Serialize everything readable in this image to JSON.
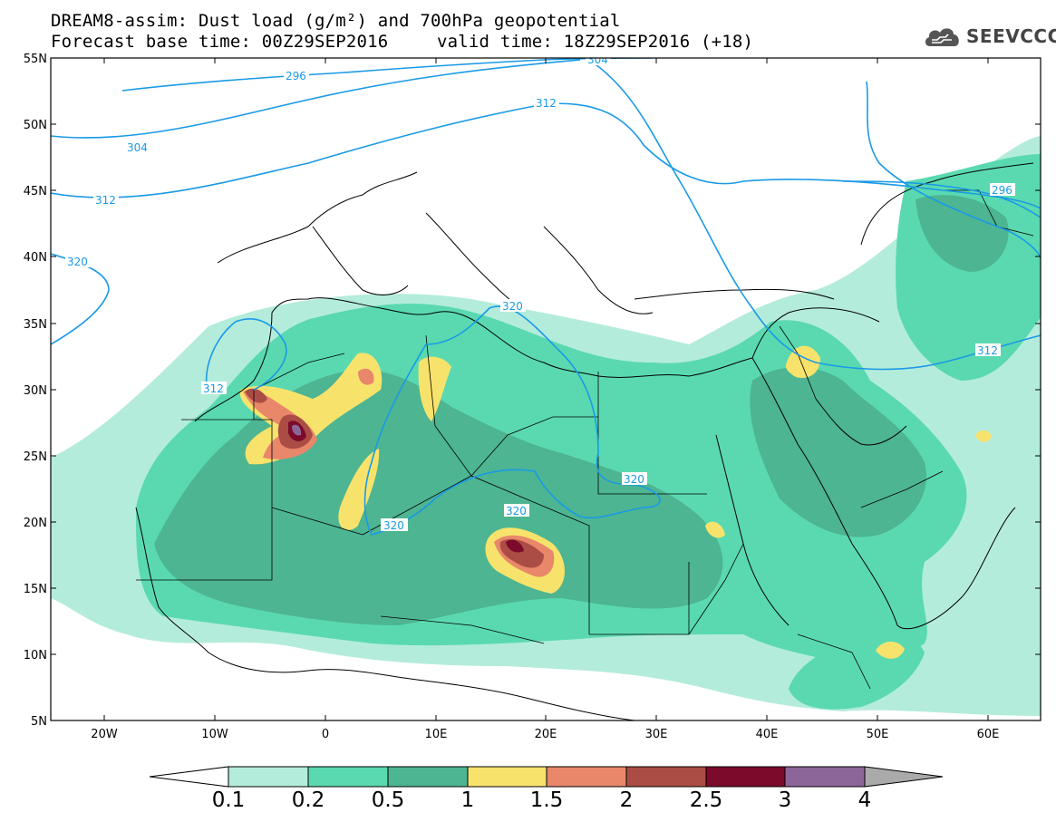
{
  "header": {
    "title_line1": "DREAM8-assim: Dust load (g/m²) and 700hPa geopotential",
    "base_time": "Forecast base time: 00Z29SEP2016",
    "valid_time": "valid time: 18Z29SEP2016 (+18)",
    "logo_text": "SEEVCCC"
  },
  "map": {
    "lat_labels": [
      "55N",
      "50N",
      "45N",
      "40N",
      "35N",
      "30N",
      "25N",
      "20N",
      "15N",
      "10N",
      "5N"
    ],
    "lon_labels": [
      "20W",
      "10W",
      "0",
      "10E",
      "20E",
      "30E",
      "40E",
      "50E",
      "60E"
    ],
    "contour_labels": [
      "296",
      "304",
      "312",
      "320",
      "312",
      "320",
      "320",
      "320",
      "312",
      "296",
      "312",
      "320",
      "304"
    ],
    "colors": {
      "c1": "#b4ecdc",
      "c2": "#5ad9b0",
      "c3": "#4db591",
      "c4": "#f7e36c",
      "c5": "#e9876a",
      "c6": "#ab4d45",
      "c7": "#7c0a2b",
      "c8": "#8c6699",
      "contour": "#1a9ae6"
    }
  },
  "colorbar": {
    "labels": [
      "0.1",
      "0.2",
      "0.5",
      "1",
      "1.5",
      "2",
      "2.5",
      "3",
      "4"
    ],
    "colors": [
      "#b4ecdc",
      "#5ad9b0",
      "#4db591",
      "#f7e36c",
      "#e9876a",
      "#ab4d45",
      "#7c0a2b",
      "#8c6699"
    ],
    "under_color": "#ffffff",
    "over_color": "#aaaaaa"
  }
}
